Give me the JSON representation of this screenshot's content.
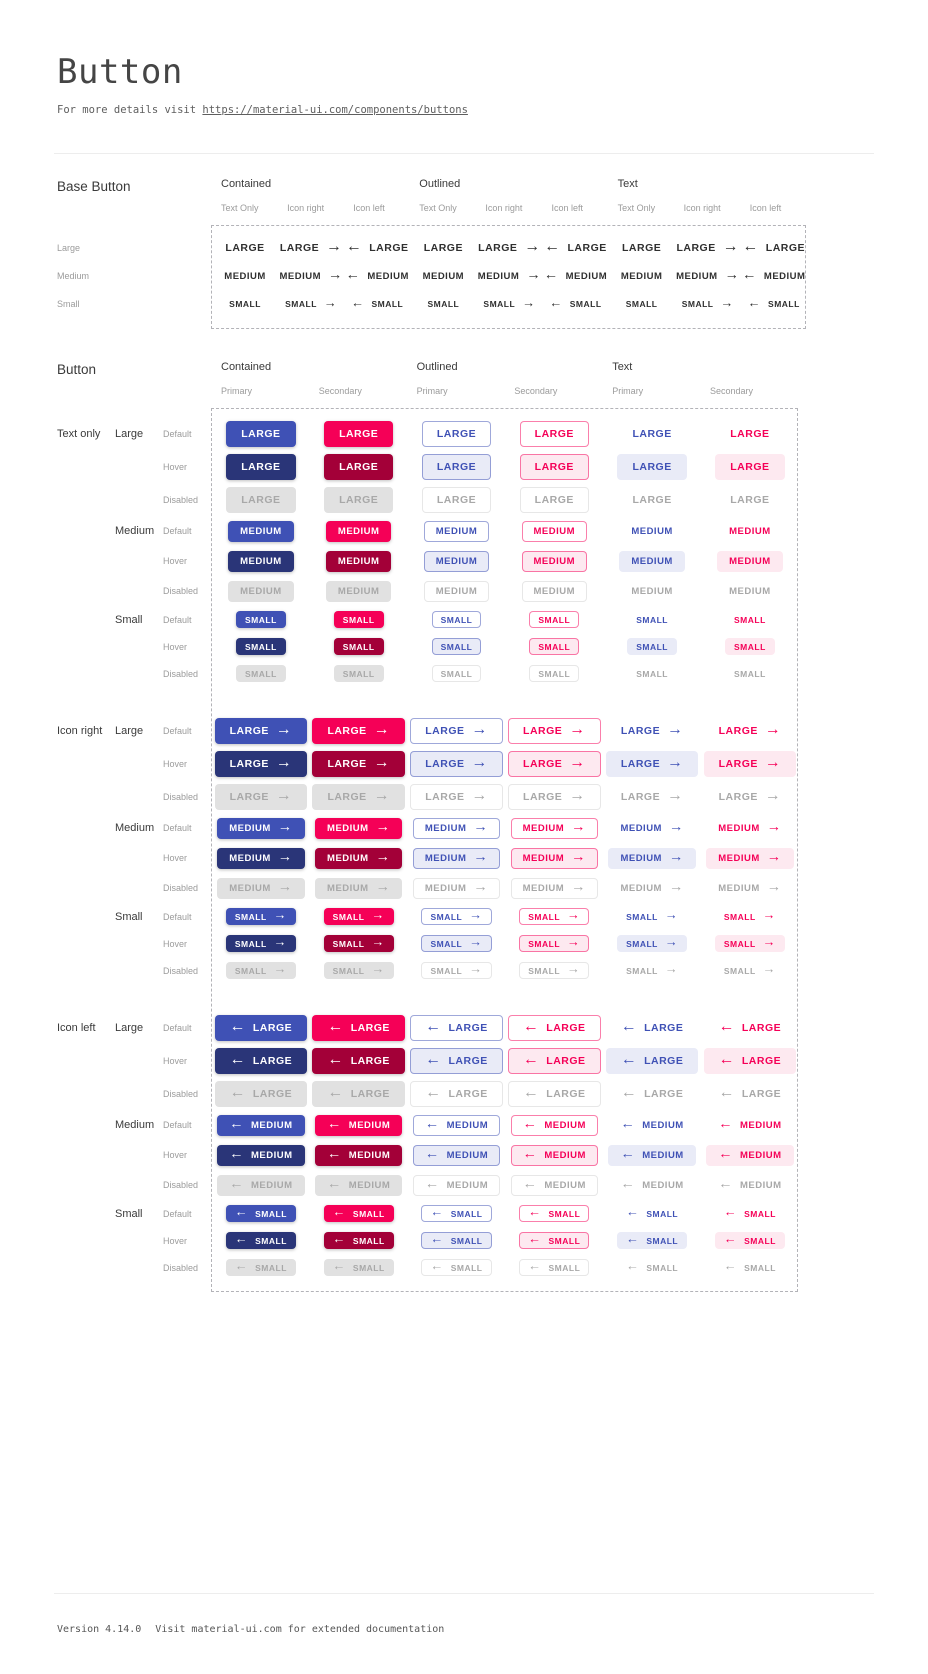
{
  "header": {
    "title": "Button",
    "subtitle_prefix": "For more details visit ",
    "subtitle_link": "https://material-ui.com/components/buttons"
  },
  "footer": {
    "version": "Version 4.14.0",
    "note": "Visit material-ui.com for extended documentation"
  },
  "colors": {
    "primary": "#3f51b5",
    "primary_hover": "#2a3578",
    "secondary": "#f50057",
    "secondary_hover": "#a30038",
    "primary_tint": "#e9ebf7",
    "secondary_tint": "#fde9f0",
    "outlined_primary_border": "rgba(63,81,181,0.5)",
    "outlined_secondary_border": "rgba(245,0,87,0.5)",
    "disabled_bg": "#e1e1e1",
    "disabled_text": "#a8a8a8",
    "disabled_border": "#e7e7e7",
    "base_text": "#2f2f2f"
  },
  "icons": {
    "arrow_right": "→",
    "arrow_left": "←"
  },
  "base_section": {
    "title": "Base Button",
    "groups": [
      "Contained",
      "Outlined",
      "Text"
    ],
    "variants": [
      "Text Only",
      "Icon right",
      "Icon left"
    ],
    "sizes": [
      "Large",
      "Medium",
      "Small"
    ],
    "size_labels": {
      "Large": "LARGE",
      "Medium": "MEDIUM",
      "Small": "SMALL"
    }
  },
  "button_section": {
    "title": "Button",
    "groups": [
      "Contained",
      "Outlined",
      "Text"
    ],
    "subcolumns": [
      "Primary",
      "Secondary"
    ],
    "row_groups": [
      "Text only",
      "Icon right",
      "Icon left"
    ],
    "sizes": [
      "Large",
      "Medium",
      "Small"
    ],
    "states": [
      "Default",
      "Hover",
      "Disabled"
    ],
    "size_labels": {
      "Large": "LARGE",
      "Medium": "MEDIUM",
      "Small": "SMALL"
    }
  }
}
